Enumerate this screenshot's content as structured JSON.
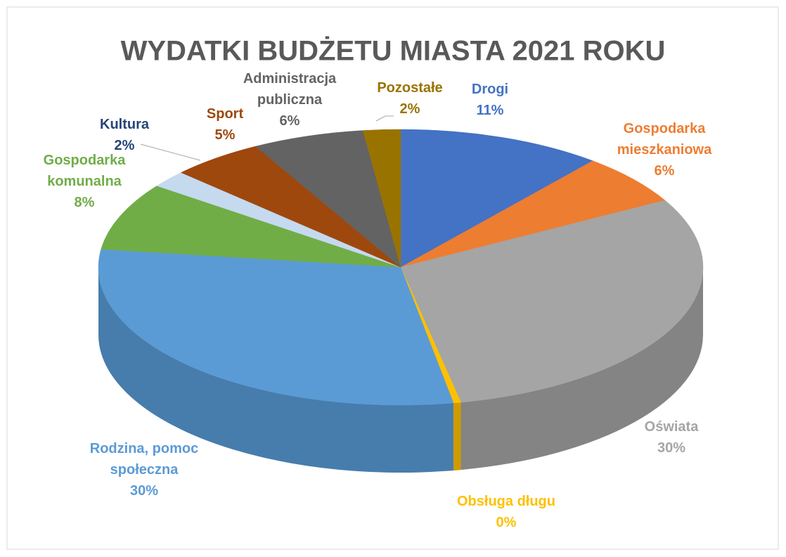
{
  "chart_data": {
    "type": "pie3d",
    "title": "WYDATKI BUDŻETU MIASTA 2021 ROKU",
    "categories": [
      "Drogi",
      "Gospodarka mieszkaniowa",
      "Oświata",
      "Obsługa długu",
      "Rodzina, pomoc społeczna",
      "Gospodarka komunalna",
      "Kultura",
      "Sport",
      "Administracja publiczna",
      "Pozostałe"
    ],
    "values": [
      11,
      6,
      30,
      0.4,
      30,
      8,
      2,
      5,
      6,
      2
    ],
    "value_labels": [
      "11%",
      "6%",
      "30%",
      "0%",
      "30%",
      "8%",
      "2%",
      "5%",
      "6%",
      "2%"
    ],
    "colors": [
      "#4472c4",
      "#ed7d31",
      "#a5a5a5",
      "#ffc000",
      "#5b9bd5",
      "#70ad47",
      "#c5d9ef",
      "#9e480e",
      "#636363",
      "#997300"
    ],
    "label_colors": [
      "#4472c4",
      "#ed7d31",
      "#a5a5a5",
      "#ffc000",
      "#5b9bd5",
      "#70ad47",
      "#264478",
      "#9e480e",
      "#636363",
      "#997300"
    ]
  }
}
